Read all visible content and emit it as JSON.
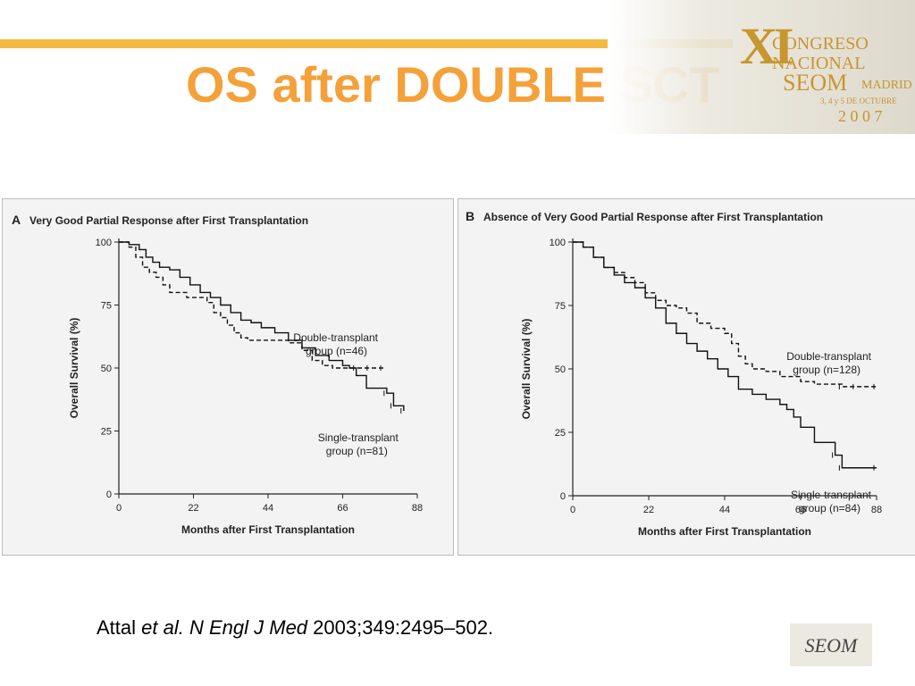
{
  "slide": {
    "title": "OS after DOUBLE SCT",
    "citation": {
      "author": "Attal",
      "etal": "et al.",
      "journal": "N Engl J Med",
      "ref": "2003;349:2495–502."
    }
  },
  "logo": {
    "numeral": "XI",
    "line1": "CONGRESO",
    "line2": "NACIONAL",
    "line3": "SEOM",
    "city": "MADRID",
    "dates": "3, 4 y 5 DE OCTUBRE",
    "year": "2 0 0 7",
    "small_logo_text": "SEOM"
  },
  "colors": {
    "title": "#f4a13a",
    "accent_bar": "#f4b942",
    "logo_gold": "#c8962e"
  },
  "chart_data": [
    {
      "type": "line",
      "panel_letter": "A",
      "title": "Very Good Partial Response after First Transplantation",
      "xlabel": "Months after First Transplantation",
      "ylabel": "Overall Survival (%)",
      "xlim": [
        0,
        88
      ],
      "ylim": [
        0,
        100
      ],
      "xticks": [
        0,
        22,
        44,
        66,
        88
      ],
      "yticks": [
        0,
        25,
        50,
        75,
        100
      ],
      "series": [
        {
          "name": "Double-transplant group (n=46)",
          "style": "dashed",
          "x": [
            0,
            3,
            5,
            7,
            9,
            11,
            13,
            15,
            17,
            20,
            23,
            26,
            28,
            30,
            32,
            34,
            36,
            38,
            40,
            42,
            46,
            50,
            54,
            57,
            60,
            63,
            66,
            70,
            74,
            78
          ],
          "y": [
            100,
            98,
            94,
            90,
            88,
            86,
            83,
            80,
            80,
            78,
            78,
            76,
            72,
            70,
            67,
            64,
            62,
            61,
            61,
            61,
            61,
            60,
            57,
            53,
            51,
            50,
            50,
            50,
            50,
            50
          ]
        },
        {
          "name": "Single-transplant group (n=81)",
          "style": "solid",
          "x": [
            0,
            3,
            6,
            8,
            10,
            12,
            15,
            18,
            21,
            24,
            27,
            30,
            33,
            36,
            39,
            42,
            46,
            50,
            54,
            58,
            62,
            66,
            68,
            70,
            73,
            76,
            79,
            81,
            84
          ],
          "y": [
            100,
            99,
            97,
            94,
            92,
            90,
            89,
            86,
            83,
            80,
            78,
            75,
            72,
            69,
            68,
            66,
            64,
            61,
            58,
            55,
            53,
            51,
            50,
            47,
            42,
            42,
            40,
            35,
            33
          ]
        }
      ]
    },
    {
      "type": "line",
      "panel_letter": "B",
      "title": "Absence of Very Good Partial Response after First Transplantation",
      "xlabel": "Months after First Transplantation",
      "ylabel": "Overall Survival (%)",
      "xlim": [
        0,
        88
      ],
      "ylim": [
        0,
        100
      ],
      "xticks": [
        0,
        22,
        44,
        66,
        88
      ],
      "yticks": [
        0,
        25,
        50,
        75,
        100
      ],
      "series": [
        {
          "name": "Double-transplant group (n=128)",
          "style": "dashed",
          "x": [
            0,
            3,
            6,
            9,
            12,
            15,
            18,
            21,
            24,
            27,
            30,
            33,
            36,
            40,
            44,
            46,
            48,
            50,
            52,
            56,
            60,
            66,
            70,
            74,
            78,
            82,
            88
          ],
          "y": [
            100,
            98,
            94,
            90,
            88,
            86,
            84,
            80,
            77,
            75,
            74,
            72,
            68,
            66,
            64,
            60,
            55,
            52,
            50,
            49,
            47,
            45,
            44,
            44,
            43,
            43,
            43
          ]
        },
        {
          "name": "Single-transplant group (n=84)",
          "style": "solid",
          "x": [
            0,
            3,
            6,
            9,
            12,
            15,
            18,
            21,
            24,
            27,
            30,
            33,
            36,
            39,
            42,
            45,
            48,
            52,
            56,
            60,
            62,
            64,
            66,
            70,
            74,
            76,
            78,
            88
          ],
          "y": [
            100,
            98,
            94,
            90,
            87,
            84,
            82,
            78,
            74,
            68,
            64,
            60,
            57,
            54,
            50,
            47,
            42,
            40,
            38,
            36,
            34,
            31,
            27,
            21,
            21,
            16,
            11,
            11
          ]
        }
      ]
    }
  ]
}
